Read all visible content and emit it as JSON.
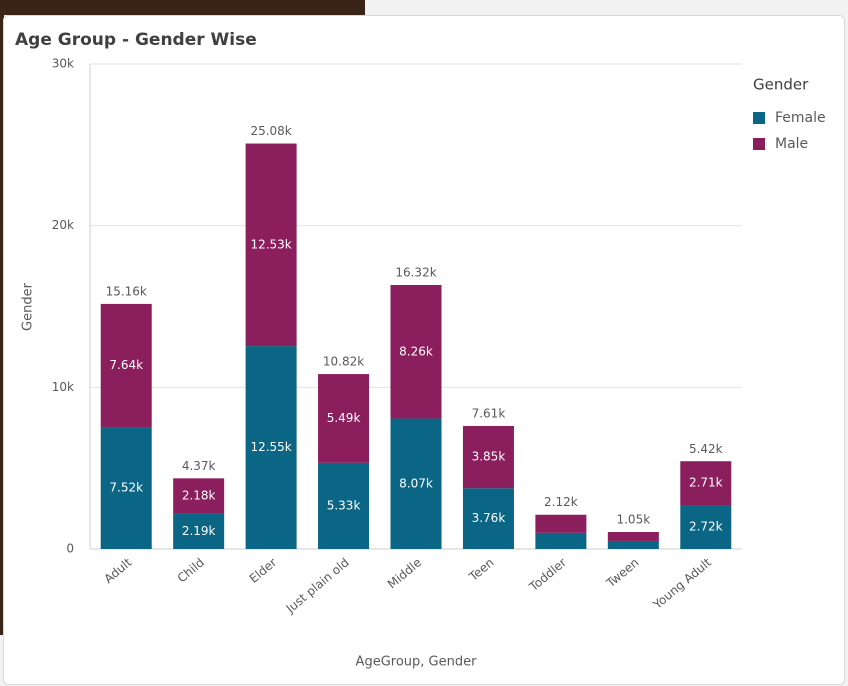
{
  "chart_data": {
    "type": "stacked_bar",
    "title": "Age Group - Gender Wise",
    "x_label": "AgeGroup, Gender",
    "y_label": "Gender",
    "legend_title": "Gender",
    "legend": "right",
    "categories": [
      "Adult",
      "Child",
      "Elder",
      "Just plain old",
      "Middle",
      "Teen",
      "Toddler",
      "Tween",
      "Young Adult"
    ],
    "series": [
      {
        "name": "Female",
        "color": "#0b6584",
        "values": [
          7520,
          2190,
          12550,
          5330,
          8070,
          3760,
          1000,
          500,
          2720
        ],
        "value_labels": [
          "7.52k",
          "2.19k",
          "12.55k",
          "5.33k",
          "8.07k",
          "3.76k",
          null,
          null,
          "2.72k"
        ]
      },
      {
        "name": "Male",
        "color": "#8b1e5c",
        "values": [
          7640,
          2180,
          12530,
          5490,
          8260,
          3850,
          1120,
          550,
          2710
        ],
        "value_labels": [
          "7.64k",
          "2.18k",
          "12.53k",
          "5.49k",
          "8.26k",
          "3.85k",
          null,
          null,
          "2.71k"
        ]
      }
    ],
    "totals": [
      15160,
      4370,
      25080,
      10820,
      16320,
      7610,
      2120,
      1050,
      5420
    ],
    "total_labels": [
      "15.16k",
      "4.37k",
      "25.08k",
      "10.82k",
      "16.32k",
      "7.61k",
      "2.12k",
      "1.05k",
      "5.42k"
    ],
    "ylim": [
      0,
      30000
    ],
    "yticks": [
      0,
      {
        "value": 10000,
        "label": "10k"
      },
      {
        "value": 20000,
        "label": "20k"
      },
      {
        "value": 30000,
        "label": "30k"
      }
    ],
    "grid": true
  }
}
